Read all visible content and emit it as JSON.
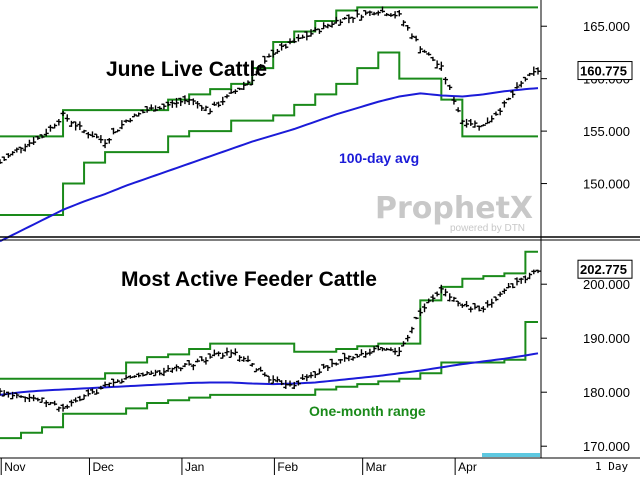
{
  "chart_data": [
    {
      "type": "ohlc",
      "title": "June Live Cattle",
      "annotation_ma": "100-day avg",
      "last_value_label": "160.775",
      "ylim": [
        145,
        167.5
      ],
      "y_ticks": [
        "150.000",
        "155.000",
        "160.000",
        "165.000"
      ],
      "y_tick_values": [
        150,
        155,
        160,
        165
      ],
      "colors": {
        "bars": "#000000",
        "range": "#1a8a1a",
        "ma": "#1b1bd8"
      },
      "days_index": [
        0,
        5,
        10,
        15,
        20,
        25,
        30,
        35,
        40,
        45,
        50,
        55,
        60,
        65,
        70,
        75,
        80,
        85,
        90,
        95,
        100,
        105,
        110,
        115,
        120,
        125,
        128
      ],
      "ohlc_close_approx": [
        152.0,
        153.5,
        154.5,
        156.5,
        155.0,
        154.0,
        156.0,
        157.0,
        157.5,
        158.0,
        157.0,
        158.5,
        160.0,
        162.5,
        163.5,
        164.5,
        165.5,
        166.0,
        166.5,
        166.0,
        163.0,
        161.0,
        156.0,
        155.5,
        157.5,
        160.0,
        160.775
      ],
      "range_high": [
        154.5,
        154.5,
        154.5,
        157.0,
        157.0,
        157.0,
        157.0,
        157.0,
        158.0,
        158.5,
        159.0,
        159.5,
        161.0,
        163.5,
        164.5,
        165.5,
        166.5,
        166.8,
        166.8,
        166.8,
        166.8,
        166.8,
        166.8,
        166.8,
        166.8,
        166.8,
        166.8
      ],
      "range_low": [
        147.0,
        147.0,
        147.0,
        150.0,
        152.0,
        153.0,
        153.0,
        153.0,
        154.5,
        155.0,
        155.0,
        156.0,
        156.0,
        156.5,
        157.5,
        158.5,
        159.5,
        161.0,
        162.5,
        160.0,
        160.0,
        158.0,
        154.5,
        154.5,
        154.5,
        154.5,
        154.5
      ],
      "ma_100": [
        144.5,
        145.5,
        146.5,
        147.5,
        148.3,
        149.0,
        149.8,
        150.5,
        151.2,
        151.9,
        152.6,
        153.3,
        154.0,
        154.6,
        155.2,
        155.9,
        156.6,
        157.2,
        157.8,
        158.3,
        158.6,
        158.4,
        158.3,
        158.5,
        158.8,
        159.0,
        159.1
      ]
    },
    {
      "type": "ohlc",
      "title": "Most Active Feeder Cattle",
      "annotation_range": "One-month range",
      "last_value_label": "202.775",
      "ylim": [
        168,
        208
      ],
      "y_ticks": [
        "170.000",
        "180.000",
        "190.000",
        "200.000"
      ],
      "y_tick_values": [
        170,
        180,
        190,
        200
      ],
      "colors": {
        "bars": "#000000",
        "range": "#1a8a1a",
        "ma": "#1b1bd8"
      },
      "days_index": [
        0,
        5,
        10,
        15,
        20,
        25,
        30,
        35,
        40,
        45,
        50,
        55,
        60,
        65,
        70,
        75,
        80,
        85,
        90,
        95,
        100,
        105,
        110,
        115,
        120,
        125,
        128
      ],
      "ohlc_close_approx": [
        180.0,
        179.5,
        178.5,
        177.0,
        179.0,
        181.0,
        182.5,
        183.5,
        184.0,
        185.0,
        186.5,
        187.5,
        185.0,
        182.0,
        181.5,
        183.5,
        185.5,
        187.0,
        188.0,
        187.5,
        195.0,
        199.0,
        196.0,
        195.0,
        199.0,
        201.0,
        202.775
      ],
      "range_high": [
        182.5,
        182.5,
        182.5,
        182.5,
        182.5,
        183.5,
        185.5,
        186.5,
        187.0,
        188.0,
        189.0,
        189.0,
        189.0,
        189.0,
        187.5,
        187.5,
        188.0,
        188.5,
        189.0,
        189.0,
        197.0,
        199.5,
        201.0,
        201.5,
        202.0,
        206.0,
        206.0
      ],
      "range_low": [
        171.5,
        172.5,
        173.5,
        176.0,
        176.0,
        176.0,
        177.0,
        178.0,
        178.5,
        179.0,
        179.5,
        179.5,
        179.5,
        179.5,
        179.5,
        180.5,
        181.0,
        181.5,
        182.0,
        182.5,
        183.5,
        185.5,
        185.5,
        185.5,
        186.0,
        193.0,
        193.0
      ],
      "ma_100": [
        179.5,
        180.0,
        180.3,
        180.5,
        180.7,
        180.9,
        181.1,
        181.3,
        181.5,
        181.7,
        181.8,
        181.8,
        181.6,
        181.5,
        181.6,
        181.8,
        182.2,
        182.6,
        183.0,
        183.5,
        184.0,
        184.6,
        185.2,
        185.7,
        186.2,
        186.8,
        187.2
      ]
    }
  ],
  "x_axis": {
    "labels": [
      "Nov",
      "Dec",
      "Jan",
      "Feb",
      "Mar",
      "Apr"
    ],
    "label_day_index": [
      1,
      22,
      44,
      66,
      87,
      109
    ]
  },
  "period_label": "1 Day",
  "watermark": {
    "main": "ProphetX",
    "sub": "powered by DTN"
  }
}
